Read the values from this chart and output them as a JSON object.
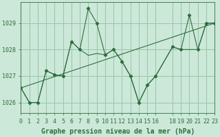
{
  "title": "Graphe pression niveau de la mer (hPa)",
  "background_color": "#cce8d8",
  "grid_color": "#99c4aa",
  "line_color": "#2d6e3e",
  "marker_color": "#2d6e3e",
  "xlim": [
    0,
    23
  ],
  "ylim": [
    1025.6,
    1029.8
  ],
  "xticks": [
    0,
    1,
    2,
    3,
    4,
    5,
    6,
    7,
    8,
    9,
    10,
    11,
    12,
    13,
    14,
    15,
    16,
    18,
    19,
    20,
    21,
    22,
    23
  ],
  "yticks": [
    1026,
    1027,
    1028,
    1029
  ],
  "line1_x": [
    0,
    1,
    2,
    3,
    4,
    5,
    6,
    7,
    8,
    9,
    10,
    11,
    12,
    13,
    14,
    15,
    16,
    18,
    19,
    20,
    21,
    22,
    23
  ],
  "line1_y": [
    1026.55,
    1026.0,
    1026.0,
    1027.2,
    1027.05,
    1027.0,
    1028.3,
    1028.0,
    1029.55,
    1029.0,
    1027.8,
    1028.0,
    1027.55,
    1027.0,
    1026.0,
    1026.65,
    1027.0,
    1028.1,
    1028.0,
    1029.3,
    1028.0,
    1029.0,
    1029.0
  ],
  "line2_x": [
    0,
    1,
    2,
    3,
    4,
    5,
    6,
    7,
    8,
    9,
    10,
    11,
    12,
    13,
    14,
    15,
    16,
    18,
    19,
    20,
    21,
    22,
    23
  ],
  "line2_y": [
    1026.55,
    1026.0,
    1026.0,
    1027.2,
    1027.05,
    1027.0,
    1028.3,
    1028.0,
    1027.78,
    1027.85,
    1027.8,
    1028.0,
    1027.55,
    1027.0,
    1026.0,
    1026.65,
    1027.0,
    1028.1,
    1028.0,
    1028.0,
    1028.0,
    1029.0,
    1029.0
  ],
  "line3_x": [
    0,
    23
  ],
  "line3_y": [
    1026.55,
    1029.0
  ],
  "xlabel_fontsize": 7,
  "tick_fontsize": 6,
  "label_color": "#2d6e3e"
}
